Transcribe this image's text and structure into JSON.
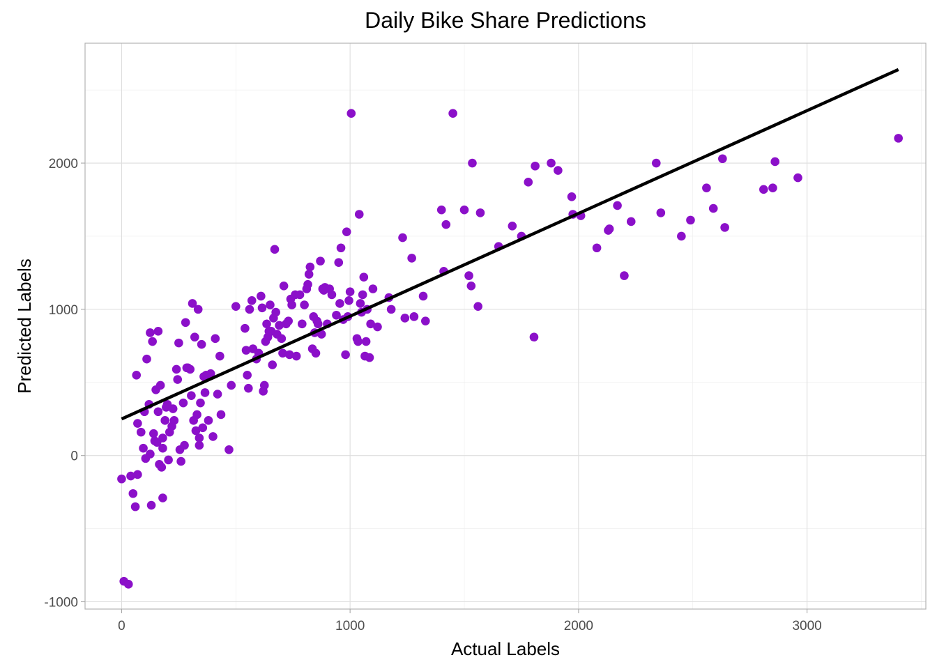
{
  "chart_data": {
    "type": "scatter",
    "title": "Daily Bike Share Predictions",
    "xlabel": "Actual Labels",
    "ylabel": "Predicted Labels",
    "xlim": [
      -160,
      3520
    ],
    "ylim": [
      -1050,
      2820
    ],
    "xticks": [
      0,
      1000,
      2000,
      3000
    ],
    "yticks": [
      -1000,
      0,
      1000,
      2000
    ],
    "xtick_labels": [
      "0",
      "1000",
      "2000",
      "3000"
    ],
    "ytick_labels": [
      "-1000",
      "0",
      "1000",
      "2000"
    ],
    "grid": true,
    "point_color": "#8b10c9",
    "line_color": "#000000",
    "trend_line": {
      "x": [
        0,
        3400
      ],
      "y": [
        250,
        2640
      ]
    },
    "points": [
      [
        0,
        -160
      ],
      [
        10,
        -860
      ],
      [
        30,
        -880
      ],
      [
        40,
        -140
      ],
      [
        50,
        -260
      ],
      [
        60,
        -350
      ],
      [
        70,
        -130
      ],
      [
        65,
        550
      ],
      [
        70,
        220
      ],
      [
        85,
        160
      ],
      [
        95,
        50
      ],
      [
        100,
        300
      ],
      [
        105,
        -20
      ],
      [
        110,
        660
      ],
      [
        120,
        350
      ],
      [
        125,
        840
      ],
      [
        125,
        10
      ],
      [
        130,
        -340
      ],
      [
        135,
        780
      ],
      [
        140,
        150
      ],
      [
        145,
        100
      ],
      [
        150,
        450
      ],
      [
        155,
        90
      ],
      [
        160,
        300
      ],
      [
        160,
        850
      ],
      [
        165,
        -60
      ],
      [
        170,
        480
      ],
      [
        175,
        -80
      ],
      [
        180,
        50
      ],
      [
        180,
        120
      ],
      [
        180,
        -290
      ],
      [
        190,
        240
      ],
      [
        195,
        330
      ],
      [
        200,
        350
      ],
      [
        205,
        -30
      ],
      [
        210,
        160
      ],
      [
        220,
        200
      ],
      [
        225,
        320
      ],
      [
        230,
        240
      ],
      [
        240,
        590
      ],
      [
        245,
        520
      ],
      [
        250,
        770
      ],
      [
        255,
        40
      ],
      [
        260,
        -40
      ],
      [
        270,
        360
      ],
      [
        275,
        70
      ],
      [
        280,
        910
      ],
      [
        285,
        600
      ],
      [
        290,
        600
      ],
      [
        300,
        590
      ],
      [
        305,
        410
      ],
      [
        310,
        1040
      ],
      [
        315,
        240
      ],
      [
        320,
        810
      ],
      [
        325,
        170
      ],
      [
        330,
        280
      ],
      [
        335,
        1000
      ],
      [
        340,
        70
      ],
      [
        340,
        120
      ],
      [
        345,
        360
      ],
      [
        350,
        760
      ],
      [
        355,
        190
      ],
      [
        360,
        540
      ],
      [
        365,
        430
      ],
      [
        370,
        550
      ],
      [
        380,
        240
      ],
      [
        390,
        560
      ],
      [
        400,
        130
      ],
      [
        410,
        800
      ],
      [
        420,
        420
      ],
      [
        430,
        680
      ],
      [
        435,
        280
      ],
      [
        470,
        40
      ],
      [
        480,
        480
      ],
      [
        500,
        1020
      ],
      [
        540,
        870
      ],
      [
        545,
        720
      ],
      [
        550,
        550
      ],
      [
        555,
        460
      ],
      [
        560,
        1000
      ],
      [
        570,
        1060
      ],
      [
        575,
        730
      ],
      [
        590,
        660
      ],
      [
        600,
        700
      ],
      [
        610,
        1090
      ],
      [
        615,
        1010
      ],
      [
        620,
        440
      ],
      [
        625,
        480
      ],
      [
        630,
        780
      ],
      [
        635,
        900
      ],
      [
        640,
        810
      ],
      [
        645,
        850
      ],
      [
        650,
        1030
      ],
      [
        655,
        850
      ],
      [
        660,
        620
      ],
      [
        665,
        940
      ],
      [
        670,
        1410
      ],
      [
        675,
        980
      ],
      [
        680,
        830
      ],
      [
        690,
        890
      ],
      [
        700,
        800
      ],
      [
        705,
        700
      ],
      [
        710,
        1160
      ],
      [
        720,
        900
      ],
      [
        730,
        920
      ],
      [
        735,
        690
      ],
      [
        740,
        1070
      ],
      [
        745,
        1030
      ],
      [
        760,
        1100
      ],
      [
        765,
        680
      ],
      [
        780,
        1100
      ],
      [
        790,
        900
      ],
      [
        800,
        1030
      ],
      [
        810,
        1140
      ],
      [
        815,
        1170
      ],
      [
        820,
        1240
      ],
      [
        825,
        1290
      ],
      [
        835,
        730
      ],
      [
        840,
        950
      ],
      [
        845,
        840
      ],
      [
        850,
        700
      ],
      [
        855,
        920
      ],
      [
        860,
        900
      ],
      [
        870,
        1330
      ],
      [
        875,
        830
      ],
      [
        880,
        1140
      ],
      [
        885,
        1130
      ],
      [
        890,
        1150
      ],
      [
        900,
        900
      ],
      [
        910,
        1140
      ],
      [
        920,
        1100
      ],
      [
        940,
        960
      ],
      [
        950,
        1320
      ],
      [
        955,
        1040
      ],
      [
        960,
        1420
      ],
      [
        970,
        930
      ],
      [
        980,
        690
      ],
      [
        985,
        1530
      ],
      [
        990,
        950
      ],
      [
        995,
        1060
      ],
      [
        1000,
        1120
      ],
      [
        1005,
        2340
      ],
      [
        1030,
        800
      ],
      [
        1035,
        780
      ],
      [
        1040,
        1650
      ],
      [
        1045,
        1040
      ],
      [
        1050,
        980
      ],
      [
        1055,
        1100
      ],
      [
        1060,
        1220
      ],
      [
        1065,
        680
      ],
      [
        1070,
        780
      ],
      [
        1075,
        1000
      ],
      [
        1085,
        670
      ],
      [
        1090,
        900
      ],
      [
        1100,
        1140
      ],
      [
        1120,
        880
      ],
      [
        1170,
        1080
      ],
      [
        1180,
        1000
      ],
      [
        1230,
        1490
      ],
      [
        1240,
        940
      ],
      [
        1270,
        1350
      ],
      [
        1280,
        950
      ],
      [
        1320,
        1090
      ],
      [
        1330,
        920
      ],
      [
        1400,
        1680
      ],
      [
        1410,
        1260
      ],
      [
        1420,
        1580
      ],
      [
        1450,
        2340
      ],
      [
        1500,
        1680
      ],
      [
        1520,
        1230
      ],
      [
        1530,
        1160
      ],
      [
        1535,
        2000
      ],
      [
        1560,
        1020
      ],
      [
        1570,
        1660
      ],
      [
        1650,
        1430
      ],
      [
        1710,
        1570
      ],
      [
        1750,
        1500
      ],
      [
        1780,
        1870
      ],
      [
        1805,
        810
      ],
      [
        1810,
        1980
      ],
      [
        1880,
        2000
      ],
      [
        1910,
        1950
      ],
      [
        1970,
        1770
      ],
      [
        1975,
        1650
      ],
      [
        2010,
        1640
      ],
      [
        2080,
        1420
      ],
      [
        2130,
        1540
      ],
      [
        2135,
        1550
      ],
      [
        2170,
        1710
      ],
      [
        2200,
        1230
      ],
      [
        2230,
        1600
      ],
      [
        2340,
        2000
      ],
      [
        2360,
        1660
      ],
      [
        2450,
        1500
      ],
      [
        2490,
        1610
      ],
      [
        2560,
        1830
      ],
      [
        2590,
        1690
      ],
      [
        2630,
        2030
      ],
      [
        2640,
        1560
      ],
      [
        2810,
        1820
      ],
      [
        2850,
        1830
      ],
      [
        2860,
        2010
      ],
      [
        2960,
        1900
      ],
      [
        3400,
        2170
      ]
    ]
  }
}
